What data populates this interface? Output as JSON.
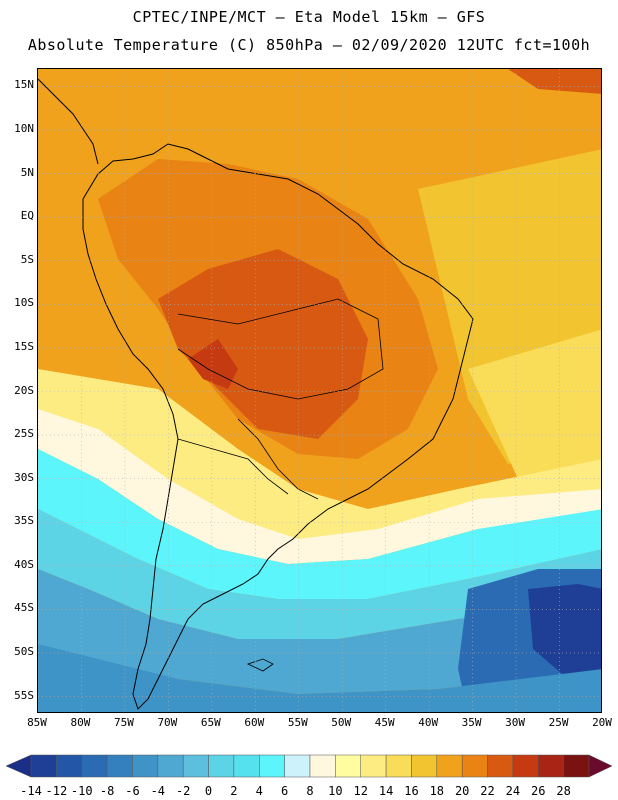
{
  "header": {
    "line1": "CPTEC/INPE/MCT –  Eta Model 15km – GFS",
    "line2": "Absolute Temperature (C) 850hPa – 02/09/2020 12UTC fct=100h"
  },
  "map": {
    "region": "South America",
    "lon_range": [
      -85,
      -20
    ],
    "lat_range": [
      -57,
      17
    ],
    "lat_ticks": [
      "15N",
      "10N",
      "5N",
      "EQ",
      "5S",
      "10S",
      "15S",
      "20S",
      "25S",
      "30S",
      "35S",
      "40S",
      "45S",
      "50S",
      "55S"
    ],
    "lon_ticks": [
      "85W",
      "80W",
      "75W",
      "70W",
      "65W",
      "60W",
      "55W",
      "50W",
      "45W",
      "40W",
      "35W",
      "30W",
      "25W",
      "20W"
    ],
    "gridlines": true,
    "ocean_color": "#f0a21c"
  },
  "colorbar": {
    "labels": [
      "-14",
      "-12",
      "-10",
      "-8",
      "-6",
      "-4",
      "-2",
      "0",
      "2",
      "4",
      "6",
      "8",
      "10",
      "12",
      "14",
      "16",
      "18",
      "20",
      "22",
      "24",
      "26",
      "28"
    ],
    "colors": [
      "#1f3f96",
      "#2356a6",
      "#2a6bb4",
      "#3480bf",
      "#3f94c7",
      "#4ea8d2",
      "#5bbfdd",
      "#5dd3e6",
      "#55e2ee",
      "#5cf5fb",
      "#cdf2fb",
      "#fff8df",
      "#fffda0",
      "#fdec82",
      "#f9dc58",
      "#f2c42f",
      "#f0a21c",
      "#e88314",
      "#d85a12",
      "#c53a10",
      "#a82414",
      "#7a1212"
    ],
    "under_color": "#1b2f86",
    "over_color": "#6a0a2c"
  }
}
